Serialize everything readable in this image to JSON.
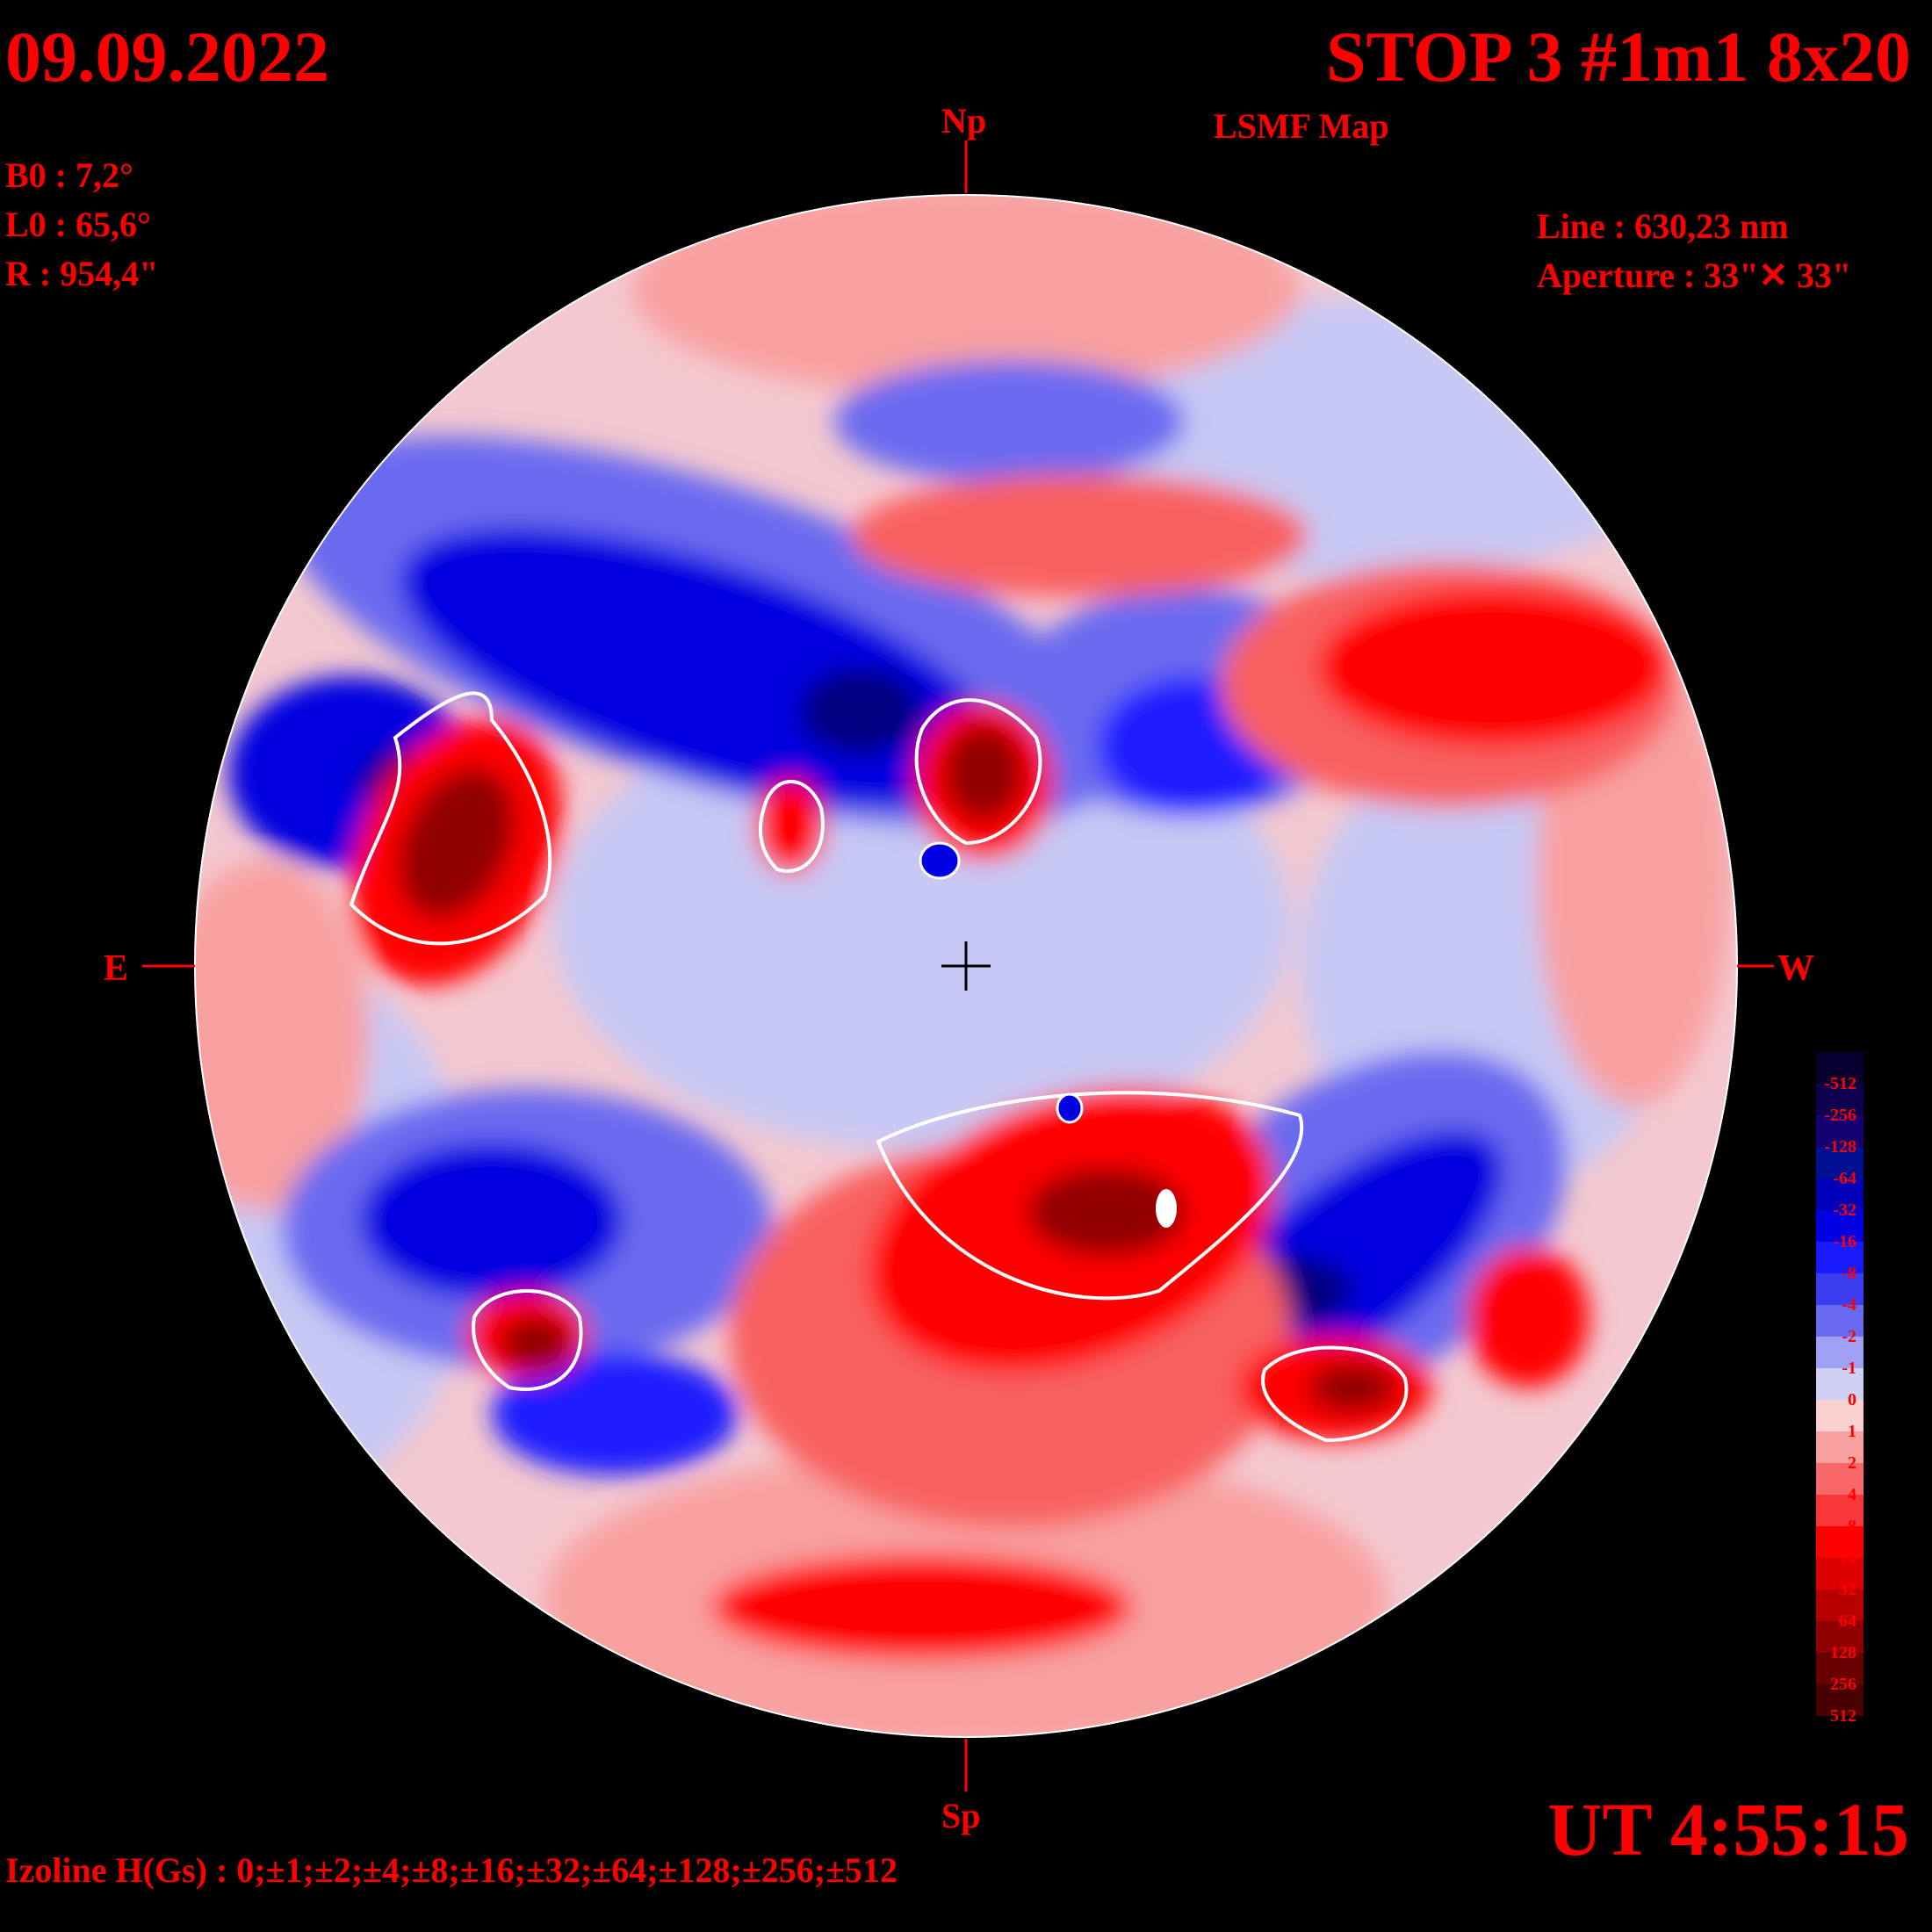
{
  "header": {
    "date": "09.09.2022",
    "title": "STOP 3 #1m1 8x20",
    "subtitle": "LSMF  Map"
  },
  "params": {
    "b0": "B0 : 7,2°",
    "l0": "L0 : 65,6°",
    "radius": "R  : 954,4\"",
    "line": "Line :  630,23 nm",
    "aperture": "Aperture : 33\"✕ 33\""
  },
  "compass": {
    "north": "Np",
    "south": "Sp",
    "east": "E",
    "west": "W"
  },
  "footer": {
    "time": "UT 4:55:15",
    "izoline": "Izoline H(Gs) : 0;±1;±2;±4;±8;±16;±32;±64;±128;±256;±512"
  },
  "colorbar": {
    "labels": [
      "-512",
      "-256",
      "-128",
      "-64",
      "-32",
      "-16",
      "-8",
      "-4",
      "-2",
      "-1",
      "0",
      "1",
      "2",
      "4",
      "8",
      "16",
      "32",
      "64",
      "128",
      "256",
      "512"
    ],
    "colors": [
      "#0a0030",
      "#0f0050",
      "#140070",
      "#001090",
      "#0000b8",
      "#0000e0",
      "#1a1aff",
      "#3c3cf0",
      "#6a6af0",
      "#a0a0f4",
      "#d0d0f4",
      "#fad0d0",
      "#f8a0a0",
      "#f86868",
      "#f83838",
      "#ff0000",
      "#dc0000",
      "#b80000",
      "#900000",
      "#680000",
      "#480000"
    ]
  },
  "map": {
    "polarity_colors": {
      "neg_weak": "#c8c8f4",
      "neg_mid": "#7070f0",
      "neg_strong": "#0000e0",
      "neg_core": "#000080",
      "pos_weak": "#fac8c8",
      "pos_mid": "#f86060",
      "pos_strong": "#ff0000",
      "pos_core": "#800000"
    }
  }
}
